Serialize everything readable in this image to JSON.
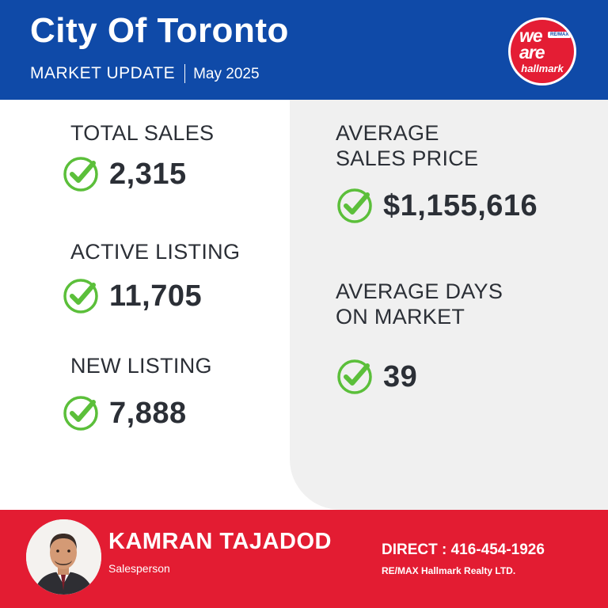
{
  "header": {
    "title": "City Of Toronto",
    "subtitle_left": "MARKET UPDATE",
    "subtitle_right": "May 2025"
  },
  "logo": {
    "line1": "we",
    "line2": "are",
    "badge": "RE/MAX",
    "brand": "hallmark"
  },
  "stats_left": [
    {
      "label": "TOTAL SALES",
      "value": "2,315"
    },
    {
      "label": "ACTIVE LISTING",
      "value": "11,705"
    },
    {
      "label": "NEW LISTING",
      "value": "7,888"
    }
  ],
  "stats_right": [
    {
      "label_line1": "AVERAGE",
      "label_line2": "SALES PRICE",
      "value": "$1,155,616"
    },
    {
      "label_line1": "AVERAGE DAYS",
      "label_line2": "ON MARKET",
      "value": "39"
    }
  ],
  "footer": {
    "name": "KAMRAN TAJADOD",
    "role": "Salesperson",
    "direct": "DIRECT : 416-454-1926",
    "company": "RE/MAX Hallmark Realty LTD."
  },
  "icons": {
    "check": "check-circle-icon",
    "avatar": "agent-portrait"
  },
  "colors": {
    "header_blue": "#0f4aa8",
    "footer_red": "#e31c32",
    "check_green": "#5bbf3a",
    "panel_gray": "#f0f0f0",
    "text_dark": "#2b2f36"
  }
}
